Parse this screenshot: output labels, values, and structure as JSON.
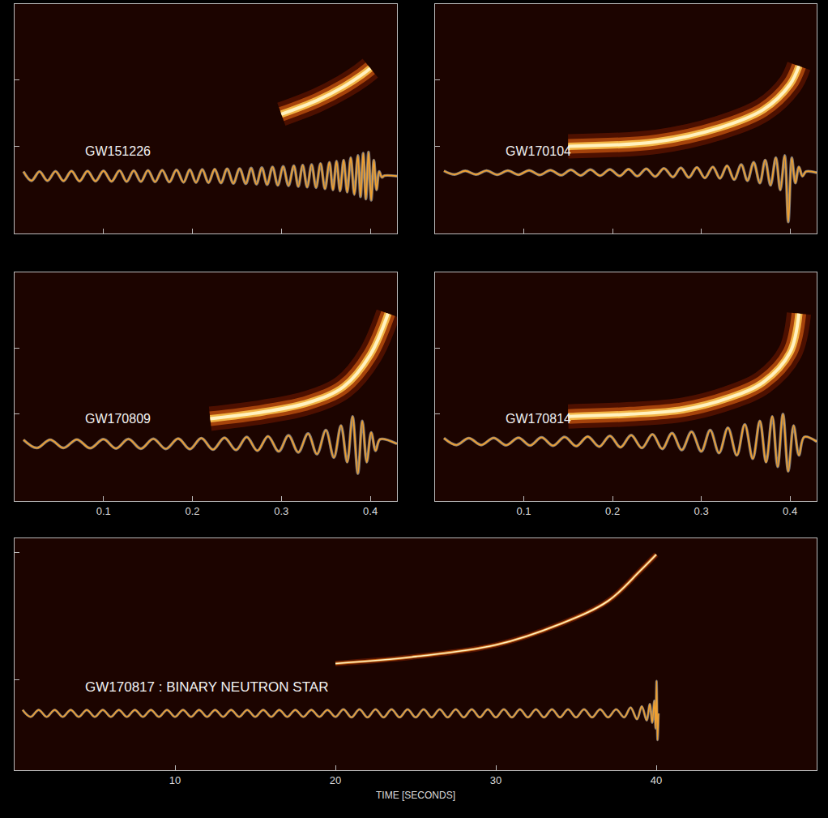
{
  "chart_data": [
    {
      "type": "line",
      "annotations": [
        "GW151226"
      ],
      "xlim": [
        0,
        0.43
      ],
      "xticks": [
        0.1,
        0.2,
        0.3,
        0.4
      ],
      "ylim": [
        0,
        10
      ],
      "yticks": [
        3.8,
        6.7
      ],
      "grid": false,
      "tick_labels": false,
      "series": [
        {
          "type": "track",
          "color": "#fff2c0",
          "x": [
            0.3,
            0.34,
            0.37,
            0.39,
            0.4
          ],
          "values": [
            5.2,
            5.8,
            6.4,
            6.9,
            7.2
          ]
        },
        {
          "type": "line",
          "color": "#f0a030",
          "x": [
            0.01,
            0.019,
            0.028,
            0.037,
            0.046,
            0.055,
            0.064,
            0.073,
            0.082,
            0.091,
            0.1,
            0.109,
            0.118,
            0.126,
            0.134,
            0.142,
            0.15,
            0.158,
            0.166,
            0.174,
            0.182,
            0.19,
            0.197,
            0.204,
            0.211,
            0.218,
            0.225,
            0.232,
            0.239,
            0.246,
            0.253,
            0.26,
            0.266,
            0.272,
            0.278,
            0.284,
            0.29,
            0.296,
            0.302,
            0.308,
            0.314,
            0.319,
            0.324,
            0.329,
            0.334,
            0.339,
            0.344,
            0.349,
            0.354,
            0.358,
            0.362,
            0.366,
            0.37,
            0.374,
            0.378,
            0.382,
            0.386,
            0.389,
            0.392,
            0.395,
            0.398,
            0.401,
            0.404,
            0.407,
            0.41,
            0.413,
            0.416,
            0.43
          ],
          "values": [
            2.7,
            2.3,
            2.7,
            2.3,
            2.71,
            2.29,
            2.72,
            2.28,
            2.72,
            2.28,
            2.73,
            2.27,
            2.74,
            2.26,
            2.74,
            2.26,
            2.75,
            2.25,
            2.76,
            2.24,
            2.77,
            2.23,
            2.78,
            2.22,
            2.79,
            2.21,
            2.8,
            2.2,
            2.82,
            2.18,
            2.83,
            2.17,
            2.85,
            2.15,
            2.87,
            2.13,
            2.9,
            2.1,
            2.92,
            2.08,
            2.95,
            2.05,
            2.98,
            2.02,
            3.0,
            2.0,
            3.05,
            1.95,
            3.1,
            1.9,
            3.15,
            1.85,
            3.2,
            1.8,
            3.3,
            1.7,
            3.4,
            1.6,
            3.5,
            1.5,
            3.55,
            1.45,
            3.2,
            1.9,
            2.7,
            2.45,
            2.52,
            2.5
          ]
        }
      ]
    },
    {
      "type": "line",
      "annotations": [
        "GW170104"
      ],
      "xlim": [
        0,
        0.43
      ],
      "xticks": [
        0.1,
        0.2,
        0.3,
        0.4
      ],
      "ylim": [
        0,
        10
      ],
      "yticks": [
        3.8,
        6.7
      ],
      "grid": false,
      "tick_labels": false,
      "series": [
        {
          "type": "track",
          "color": "#fff2c0",
          "x": [
            0.15,
            0.25,
            0.32,
            0.37,
            0.4,
            0.41
          ],
          "values": [
            3.8,
            4.0,
            4.6,
            5.4,
            6.5,
            7.3
          ]
        },
        {
          "type": "line",
          "color": "#f0a030",
          "x": [
            0.01,
            0.022,
            0.034,
            0.046,
            0.058,
            0.07,
            0.082,
            0.094,
            0.106,
            0.118,
            0.13,
            0.142,
            0.153,
            0.164,
            0.175,
            0.186,
            0.197,
            0.208,
            0.218,
            0.228,
            0.238,
            0.248,
            0.258,
            0.268,
            0.277,
            0.286,
            0.295,
            0.304,
            0.313,
            0.321,
            0.329,
            0.337,
            0.345,
            0.352,
            0.359,
            0.366,
            0.372,
            0.378,
            0.384,
            0.389,
            0.394,
            0.398,
            0.402,
            0.406,
            0.41,
            0.414,
            0.418,
            0.43
          ],
          "values": [
            2.73,
            2.57,
            2.73,
            2.57,
            2.74,
            2.56,
            2.74,
            2.56,
            2.75,
            2.55,
            2.76,
            2.54,
            2.77,
            2.53,
            2.78,
            2.52,
            2.79,
            2.51,
            2.8,
            2.5,
            2.82,
            2.48,
            2.84,
            2.46,
            2.86,
            2.44,
            2.88,
            2.42,
            2.9,
            2.4,
            2.95,
            2.35,
            3.0,
            2.3,
            3.1,
            2.2,
            3.2,
            2.1,
            3.3,
            1.9,
            3.4,
            0.5,
            3.3,
            2.2,
            2.9,
            2.5,
            2.7,
            2.65
          ]
        }
      ]
    },
    {
      "type": "line",
      "annotations": [
        "GW170809"
      ],
      "xlim": [
        0,
        0.43
      ],
      "xticks": [
        0.1,
        0.2,
        0.3,
        0.4
      ],
      "ylim": [
        0,
        10
      ],
      "yticks": [
        3.8,
        6.7
      ],
      "grid": false,
      "tick_labels": "x",
      "series": [
        {
          "type": "track",
          "color": "#fff2c0",
          "x": [
            0.22,
            0.28,
            0.33,
            0.37,
            0.4,
            0.42
          ],
          "values": [
            3.6,
            3.9,
            4.3,
            5.0,
            6.4,
            8.2
          ]
        },
        {
          "type": "line",
          "color": "#f0a030",
          "x": [
            0.01,
            0.025,
            0.04,
            0.055,
            0.07,
            0.085,
            0.1,
            0.114,
            0.128,
            0.142,
            0.156,
            0.17,
            0.184,
            0.197,
            0.21,
            0.223,
            0.236,
            0.249,
            0.261,
            0.273,
            0.285,
            0.297,
            0.308,
            0.319,
            0.33,
            0.34,
            0.35,
            0.359,
            0.367,
            0.374,
            0.38,
            0.386,
            0.391,
            0.396,
            0.401,
            0.406,
            0.411,
            0.43
          ],
          "values": [
            2.68,
            2.32,
            2.68,
            2.32,
            2.69,
            2.31,
            2.7,
            2.3,
            2.71,
            2.29,
            2.72,
            2.28,
            2.73,
            2.27,
            2.75,
            2.25,
            2.77,
            2.23,
            2.8,
            2.2,
            2.83,
            2.17,
            2.87,
            2.13,
            2.95,
            2.05,
            3.1,
            1.9,
            3.3,
            1.7,
            3.7,
            1.2,
            3.5,
            1.7,
            3.0,
            2.2,
            2.7,
            2.5
          ]
        }
      ]
    },
    {
      "type": "line",
      "annotations": [
        "GW170814"
      ],
      "xlim": [
        0,
        0.43
      ],
      "xticks": [
        0.1,
        0.2,
        0.3,
        0.4
      ],
      "ylim": [
        0,
        10
      ],
      "yticks": [
        3.8,
        6.7
      ],
      "grid": false,
      "tick_labels": "x",
      "series": [
        {
          "type": "track",
          "color": "#fff2c0",
          "x": [
            0.15,
            0.22,
            0.28,
            0.33,
            0.37,
            0.4,
            0.41
          ],
          "values": [
            3.7,
            3.8,
            4.0,
            4.5,
            5.2,
            6.5,
            8.2
          ]
        },
        {
          "type": "line",
          "color": "#f0a030",
          "x": [
            0.01,
            0.024,
            0.038,
            0.052,
            0.066,
            0.08,
            0.094,
            0.107,
            0.12,
            0.133,
            0.146,
            0.159,
            0.172,
            0.185,
            0.197,
            0.209,
            0.221,
            0.233,
            0.245,
            0.256,
            0.267,
            0.278,
            0.289,
            0.3,
            0.31,
            0.32,
            0.33,
            0.34,
            0.349,
            0.358,
            0.366,
            0.373,
            0.38,
            0.386,
            0.392,
            0.398,
            0.404,
            0.41,
            0.416,
            0.43
          ],
          "values": [
            2.75,
            2.45,
            2.75,
            2.45,
            2.76,
            2.44,
            2.77,
            2.43,
            2.78,
            2.42,
            2.8,
            2.4,
            2.82,
            2.38,
            2.85,
            2.35,
            2.88,
            2.32,
            2.92,
            2.28,
            2.97,
            2.23,
            3.03,
            2.17,
            3.1,
            2.1,
            3.2,
            2.0,
            3.35,
            1.85,
            3.5,
            1.7,
            3.7,
            1.5,
            3.8,
            1.3,
            3.3,
            2.0,
            2.8,
            2.6
          ]
        }
      ]
    },
    {
      "type": "line",
      "annotations": [
        "GW170817 : BINARY NEUTRON STAR"
      ],
      "x_label": "TIME [SECONDS]",
      "xlim": [
        0,
        50
      ],
      "xticks": [
        10,
        20,
        30,
        40
      ],
      "ylim": [
        0,
        10
      ],
      "yticks": [
        3.9,
        9.4
      ],
      "grid": false,
      "tick_labels": "x",
      "series": [
        {
          "type": "track",
          "color": "#fff2c0",
          "x": [
            20,
            25,
            30,
            34,
            37,
            39,
            40
          ],
          "values": [
            4.6,
            4.9,
            5.4,
            6.3,
            7.3,
            8.6,
            9.3
          ]
        },
        {
          "type": "line",
          "color": "#f0a030",
          "x": [
            0.5,
            1,
            1.5,
            2,
            2.5,
            3,
            3.5,
            4,
            4.5,
            5,
            5.5,
            6,
            6.5,
            7,
            7.5,
            8,
            8.5,
            9,
            9.5,
            10,
            10.5,
            11,
            11.5,
            12,
            12.5,
            13,
            13.5,
            14,
            14.5,
            15,
            15.5,
            16,
            16.5,
            17,
            17.5,
            18,
            18.5,
            19,
            19.5,
            20,
            20.5,
            21,
            21.5,
            22,
            22.5,
            23,
            23.5,
            24,
            24.5,
            25,
            25.5,
            26,
            26.5,
            27,
            27.5,
            28,
            28.5,
            29,
            29.5,
            30,
            30.5,
            31,
            31.5,
            32,
            32.5,
            33,
            33.5,
            34,
            34.5,
            35,
            35.5,
            36,
            36.5,
            37,
            37.5,
            38,
            38.4,
            38.8,
            39.1,
            39.4,
            39.6,
            39.75,
            39.88,
            39.96,
            40.02,
            40.08,
            40.14
          ],
          "values": [
            2.6,
            2.3,
            2.6,
            2.3,
            2.6,
            2.3,
            2.6,
            2.3,
            2.6,
            2.3,
            2.6,
            2.3,
            2.6,
            2.3,
            2.6,
            2.3,
            2.6,
            2.3,
            2.6,
            2.3,
            2.6,
            2.3,
            2.6,
            2.3,
            2.6,
            2.3,
            2.6,
            2.3,
            2.6,
            2.3,
            2.6,
            2.3,
            2.6,
            2.3,
            2.6,
            2.3,
            2.6,
            2.3,
            2.6,
            2.3,
            2.62,
            2.28,
            2.62,
            2.28,
            2.62,
            2.28,
            2.62,
            2.28,
            2.62,
            2.28,
            2.62,
            2.28,
            2.62,
            2.28,
            2.62,
            2.28,
            2.62,
            2.28,
            2.62,
            2.28,
            2.62,
            2.28,
            2.62,
            2.28,
            2.62,
            2.28,
            2.62,
            2.28,
            2.62,
            2.28,
            2.62,
            2.28,
            2.62,
            2.28,
            2.62,
            2.28,
            2.7,
            2.2,
            2.75,
            2.15,
            2.85,
            2.05,
            3.0,
            1.8,
            3.85,
            1.3,
            2.45
          ]
        }
      ]
    }
  ]
}
